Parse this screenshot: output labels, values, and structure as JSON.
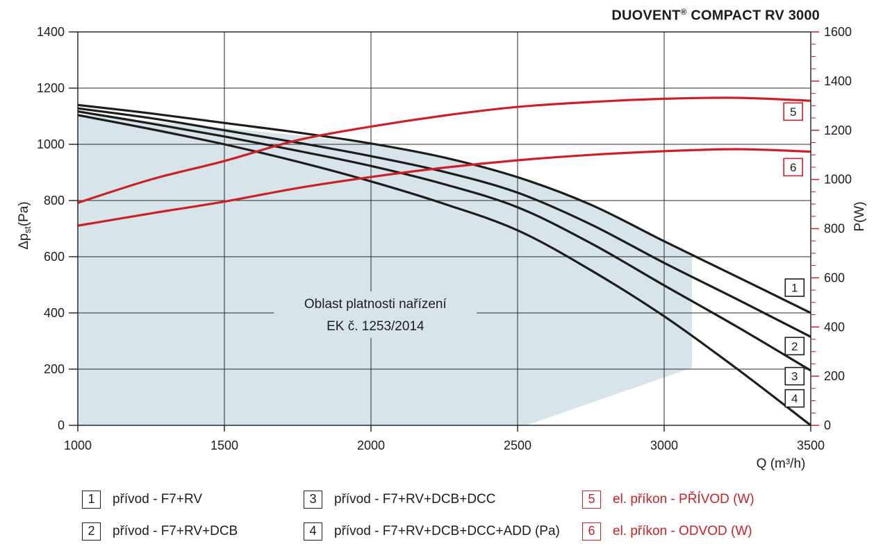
{
  "title": {
    "pre": "DUOVENT",
    "reg": "®",
    "post": " COMPACT RV 3000"
  },
  "chart_data": {
    "type": "line",
    "title": "DUOVENT® COMPACT RV 3000",
    "xlabel": "Q (m³/h)",
    "xlim": [
      1000,
      3500
    ],
    "x_ticks": [
      1000,
      1500,
      2000,
      2500,
      3000,
      3500
    ],
    "x_tick_labels": [
      "1000",
      "1500",
      "2000",
      "2500",
      "3000",
      "3500"
    ],
    "grid": true,
    "left_axis": {
      "label": "Δpst(Pa)",
      "label_main": "Δp",
      "label_sub": "st",
      "label_unit": "(Pa)",
      "lim": [
        0,
        1400
      ],
      "ticks": [
        0,
        200,
        400,
        600,
        800,
        1000,
        1200,
        1400
      ],
      "color": "#1d1d1b"
    },
    "right_axis": {
      "label": "P(W)",
      "lim": [
        0,
        1600
      ],
      "ticks": [
        0,
        200,
        400,
        600,
        800,
        1000,
        1200,
        1400,
        1600
      ],
      "minor_step": 50,
      "color": "#cc2026"
    },
    "x": [
      1000,
      1250,
      1500,
      1750,
      2000,
      2250,
      2500,
      2750,
      3000,
      3250,
      3500
    ],
    "series": [
      {
        "id": "1",
        "name": "přívod - F7+RV",
        "axis": "left",
        "color": "#1d1d1b",
        "values": [
          1140,
          1110,
          1076,
          1042,
          1003,
          953,
          883,
          785,
          655,
          528,
          400
        ],
        "marker": {
          "q": 3445,
          "v": 490
        }
      },
      {
        "id": "2",
        "name": "přívod - F7+RV+DCB",
        "axis": "left",
        "color": "#1d1d1b",
        "values": [
          1128,
          1093,
          1050,
          1006,
          958,
          902,
          828,
          715,
          578,
          448,
          315
        ],
        "marker": {
          "q": 3445,
          "v": 282
        }
      },
      {
        "id": "3",
        "name": "přívod - F7+RV+DCB+DCC",
        "axis": "left",
        "color": "#1d1d1b",
        "values": [
          1117,
          1074,
          1028,
          977,
          923,
          858,
          776,
          648,
          498,
          350,
          195
        ],
        "marker": {
          "q": 3445,
          "v": 175
        }
      },
      {
        "id": "4",
        "name": "přívod - F7+RV+DCB+DCC+ADD (Pa)",
        "axis": "left",
        "color": "#1d1d1b",
        "values": [
          1104,
          1054,
          1000,
          938,
          868,
          788,
          694,
          552,
          388,
          200,
          0
        ],
        "marker": {
          "q": 3445,
          "v": 96
        }
      },
      {
        "id": "5",
        "name": "el. příkon - PŘÍVOD (W)",
        "axis": "right",
        "color": "#cc2026",
        "values": [
          905,
          1000,
          1075,
          1160,
          1215,
          1260,
          1295,
          1315,
          1328,
          1332,
          1320
        ],
        "marker": {
          "q": 3440,
          "v": 1276
        }
      },
      {
        "id": "6",
        "name": "el. příkon - ODVOD (W)",
        "axis": "right",
        "color": "#cc2026",
        "values": [
          812,
          862,
          910,
          965,
          1010,
          1048,
          1078,
          1100,
          1115,
          1123,
          1113
        ],
        "marker": {
          "q": 3440,
          "v": 1050
        }
      }
    ],
    "region": {
      "color": "#d7e4ea",
      "label_line1": "Oblast platnosti nařízení",
      "label_line2": "EK č. 1253/2014",
      "label_anchor": {
        "q": 2015,
        "pa": 395
      },
      "outline": [
        {
          "q": 1000,
          "pa": 1108
        },
        {
          "q": 1250,
          "pa": 1082
        },
        {
          "q": 1500,
          "pa": 1058
        },
        {
          "q": 1750,
          "pa": 1032
        },
        {
          "q": 2000,
          "pa": 1000
        },
        {
          "q": 2250,
          "pa": 951
        },
        {
          "q": 2500,
          "pa": 881
        },
        {
          "q": 2750,
          "pa": 783
        },
        {
          "q": 3000,
          "pa": 653
        },
        {
          "q": 3095,
          "pa": 602
        },
        {
          "q": 3095,
          "pa": 205
        },
        {
          "q": 2530,
          "pa": 0
        },
        {
          "q": 1000,
          "pa": 0
        }
      ]
    }
  },
  "legend": {
    "items": [
      {
        "num": "1",
        "label": "přívod - F7+RV"
      },
      {
        "num": "2",
        "label": "přívod - F7+RV+DCB"
      },
      {
        "num": "3",
        "label": "přívod - F7+RV+DCB+DCC"
      },
      {
        "num": "4",
        "label": "přívod - F7+RV+DCB+DCC+ADD (Pa)"
      },
      {
        "num": "5",
        "label": "el. příkon - PŘÍVOD (W)"
      },
      {
        "num": "6",
        "label": "el. příkon - ODVOD (W)"
      }
    ]
  }
}
